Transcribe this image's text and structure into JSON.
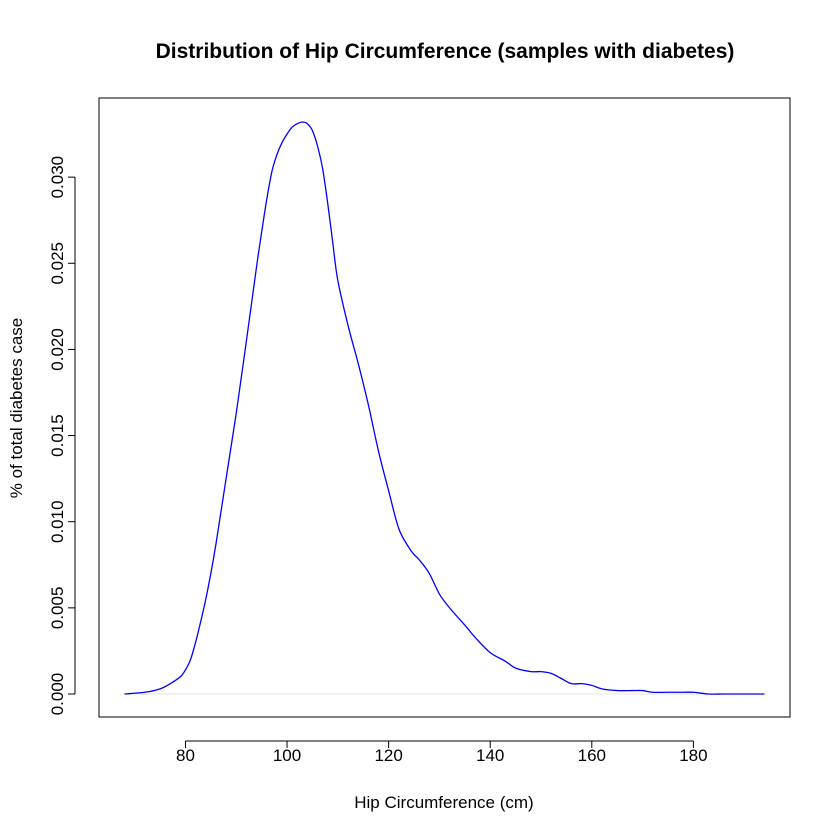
{
  "chart_data": {
    "type": "line",
    "title": "Distribution of Hip Circumference (samples with diabetes)",
    "xlabel": "Hip Circumference (cm)",
    "ylabel": "% of total diabetes case",
    "xlim": [
      68,
      194
    ],
    "ylim": [
      0,
      0.0332
    ],
    "xticks": [
      80,
      100,
      120,
      140,
      160,
      180
    ],
    "yticks": [
      0.0,
      0.005,
      0.01,
      0.015,
      0.02,
      0.025,
      0.03
    ],
    "xtick_labels": [
      "80",
      "100",
      "120",
      "140",
      "160",
      "180"
    ],
    "ytick_labels": [
      "0.000",
      "0.005",
      "0.010",
      "0.015",
      "0.020",
      "0.025",
      "0.030"
    ],
    "grid": false,
    "baseline_y": 0,
    "series": [
      {
        "color": "#0000ff",
        "x": [
          68,
          72,
          75,
          77,
          79,
          80,
          81,
          82,
          83,
          84,
          85,
          86,
          88,
          90,
          92,
          94,
          95,
          96,
          97,
          98,
          99,
          100,
          101,
          102,
          103,
          104,
          105,
          106,
          107,
          108,
          109,
          110,
          112,
          114,
          116,
          118,
          120,
          122,
          124,
          125,
          126,
          128,
          130,
          132,
          135,
          137,
          140,
          143,
          145,
          148,
          150,
          152,
          154,
          156,
          158,
          160,
          162,
          165,
          168,
          170,
          172,
          175,
          178,
          180,
          183,
          186,
          190,
          194
        ],
        "y": [
          0.0,
          0.0001,
          0.0003,
          0.0006,
          0.001,
          0.0014,
          0.002,
          0.003,
          0.0042,
          0.0055,
          0.007,
          0.0087,
          0.0125,
          0.0163,
          0.0205,
          0.0248,
          0.0268,
          0.0287,
          0.0303,
          0.0313,
          0.032,
          0.0325,
          0.0329,
          0.0331,
          0.0332,
          0.0331,
          0.0327,
          0.0318,
          0.0305,
          0.0285,
          0.0262,
          0.024,
          0.0214,
          0.0192,
          0.0168,
          0.0141,
          0.0118,
          0.0096,
          0.0085,
          0.0081,
          0.0078,
          0.007,
          0.0058,
          0.005,
          0.004,
          0.0033,
          0.0024,
          0.0019,
          0.0015,
          0.0013,
          0.0013,
          0.0012,
          0.0009,
          0.0006,
          0.0006,
          0.0005,
          0.0003,
          0.0002,
          0.0002,
          0.0002,
          0.0001,
          0.0001,
          0.0001,
          0.0001,
          0.0,
          0.0,
          0.0,
          0.0
        ]
      }
    ]
  }
}
